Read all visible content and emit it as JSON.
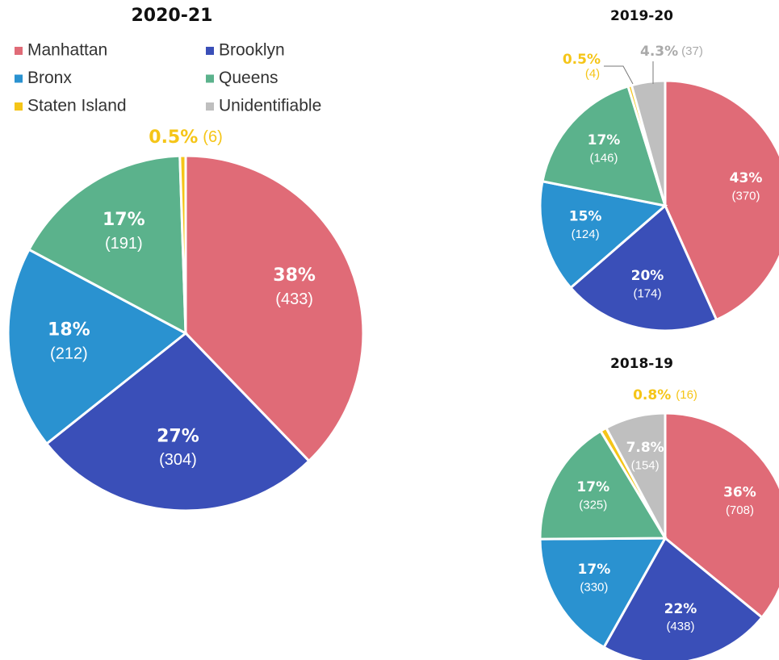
{
  "chart_data": [
    {
      "type": "pie",
      "title": "2020-21",
      "categories": [
        "Manhattan",
        "Brooklyn",
        "Bronx",
        "Queens",
        "Staten Island",
        "Unidentifiable"
      ],
      "colors": [
        "#e06b77",
        "#3a4fb8",
        "#2a92d0",
        "#5bb28c",
        "#f5c518",
        "#bfbfbf"
      ],
      "values": [
        433,
        304,
        212,
        191,
        6,
        0
      ],
      "value_labels": [
        "(433)",
        "(304)",
        "(212)",
        "(191)",
        "(6)",
        null
      ],
      "percents": [
        38,
        27,
        18,
        17,
        0.5,
        null
      ],
      "percent_labels": [
        "38%",
        "27%",
        "18%",
        "17%",
        "0.5%",
        null
      ]
    },
    {
      "type": "pie",
      "title": "2019-20",
      "values": [
        370,
        174,
        124,
        146,
        4,
        37
      ],
      "value_labels": [
        "(370)",
        "(174)",
        "(124)",
        "(146)",
        "(4)",
        "(37)"
      ],
      "percents": [
        43,
        20,
        15,
        17,
        0.5,
        4.3
      ],
      "percent_labels": [
        "43%",
        "20%",
        "15%",
        "17%",
        "0.5%",
        "4.3%"
      ]
    },
    {
      "type": "pie",
      "title": "2018-19",
      "values": [
        708,
        438,
        330,
        325,
        16,
        154
      ],
      "value_labels": [
        "(708)",
        "(438)",
        "(330)",
        "(325)",
        "(16)",
        "(154)"
      ],
      "percents": [
        36,
        22,
        17,
        17,
        0.8,
        7.8
      ],
      "percent_labels": [
        "36%",
        "22%",
        "17%",
        "17%",
        "0.8%",
        "7.8%"
      ]
    }
  ]
}
